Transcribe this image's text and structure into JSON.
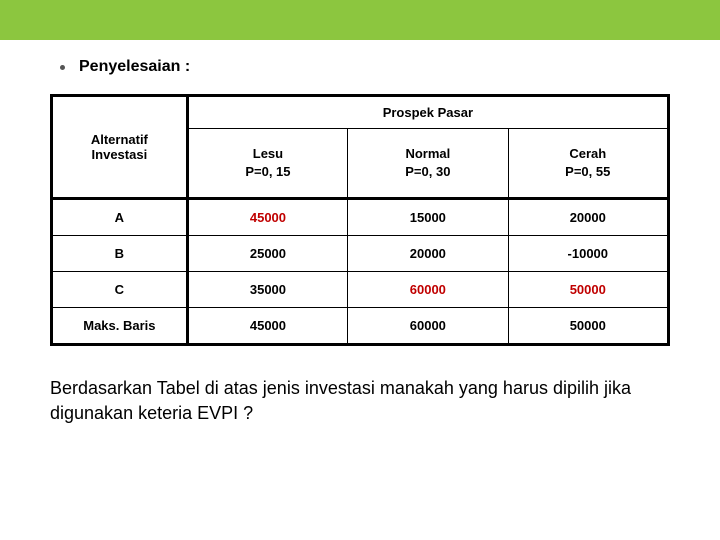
{
  "topbar_color": "#8cc63f",
  "heading": "Penyelesaian :",
  "table": {
    "prospek_header": "Prospek Pasar",
    "alt_header": "Alternatif\nInvestasi",
    "scenarios": [
      {
        "name": "Lesu",
        "prob": "P=0, 15"
      },
      {
        "name": "Normal",
        "prob": "P=0, 30"
      },
      {
        "name": "Cerah",
        "prob": "P=0, 55"
      }
    ],
    "rows": [
      {
        "label": "A",
        "values": [
          "45000",
          "15000",
          "20000"
        ],
        "red": [
          true,
          false,
          false
        ]
      },
      {
        "label": "B",
        "values": [
          "25000",
          "20000",
          "-10000"
        ],
        "red": [
          false,
          false,
          false
        ]
      },
      {
        "label": "C",
        "values": [
          "35000",
          "60000",
          "50000"
        ],
        "red": [
          false,
          true,
          true
        ]
      },
      {
        "label": "Maks. Baris",
        "values": [
          "45000",
          "60000",
          "50000"
        ],
        "red": [
          false,
          false,
          false
        ]
      }
    ]
  },
  "question": "Berdasarkan Tabel di atas jenis investasi manakah yang harus dipilih jika digunakan keteria EVPI ?"
}
